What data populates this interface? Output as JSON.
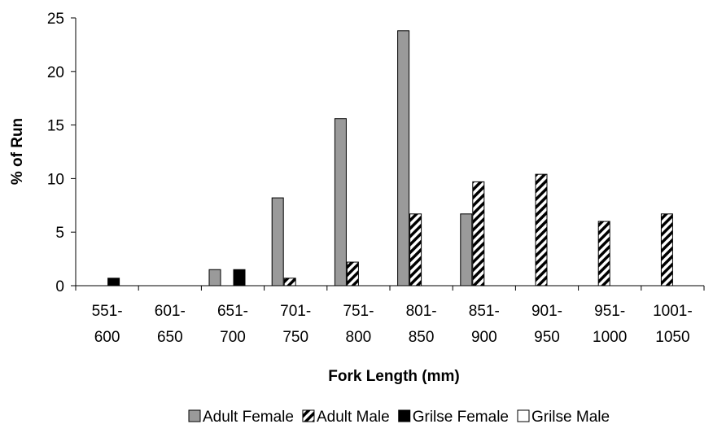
{
  "chart_data": {
    "type": "bar",
    "title": "",
    "xlabel": "Fork Length (mm)",
    "ylabel": "% of Run",
    "ylim": [
      0,
      25
    ],
    "yticks": [
      0,
      5,
      10,
      15,
      20,
      25
    ],
    "grid": false,
    "legend_position": "bottom",
    "categories": [
      [
        "551-",
        "600"
      ],
      [
        "601-",
        "650"
      ],
      [
        "651-",
        "700"
      ],
      [
        "701-",
        "750"
      ],
      [
        "751-",
        "800"
      ],
      [
        "801-",
        "850"
      ],
      [
        "851-",
        "900"
      ],
      [
        "901-",
        "950"
      ],
      [
        "951-",
        "1000"
      ],
      [
        "1001-",
        "1050"
      ]
    ],
    "series": [
      {
        "name": "Adult Female",
        "style": "gray",
        "color": "#9a9a9a",
        "values": [
          0,
          0,
          1.5,
          8.2,
          15.6,
          23.8,
          6.7,
          0,
          0,
          0
        ]
      },
      {
        "name": "Adult Male",
        "style": "hatch",
        "color": "#000000",
        "values": [
          0,
          0,
          0,
          0.7,
          2.2,
          6.7,
          9.7,
          10.4,
          6.0,
          6.7
        ]
      },
      {
        "name": "Grilse Female",
        "style": "black",
        "color": "#000000",
        "values": [
          0.7,
          0,
          1.5,
          0,
          0,
          0,
          0,
          0,
          0,
          0
        ]
      },
      {
        "name": "Grilse Male",
        "style": "white",
        "color": "#ffffff",
        "values": [
          0,
          0,
          0,
          0,
          0,
          0,
          0,
          0,
          0,
          0
        ]
      }
    ]
  }
}
